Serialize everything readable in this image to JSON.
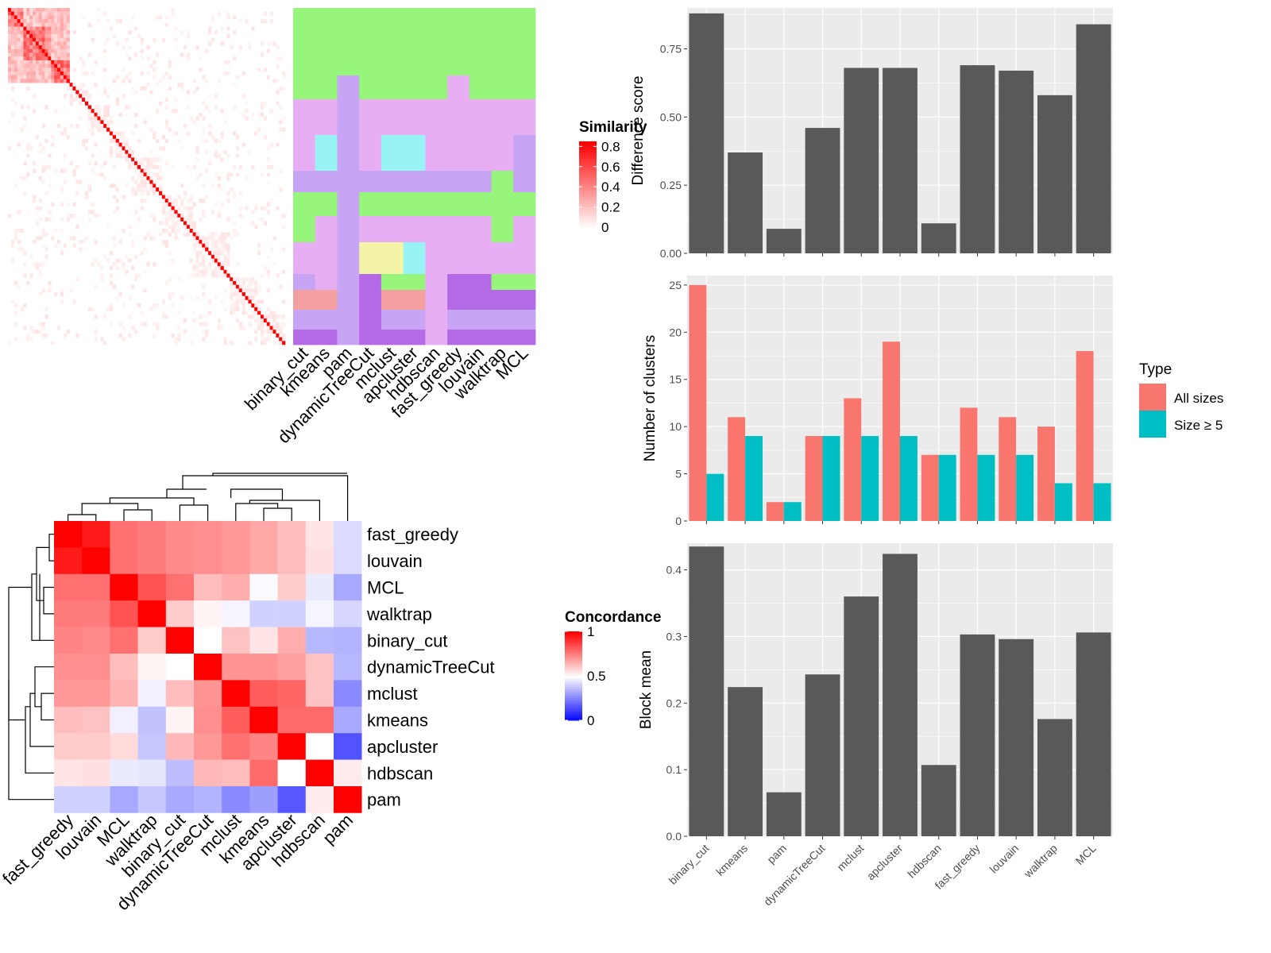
{
  "methods": [
    "binary_cut",
    "kmeans",
    "pam",
    "dynamicTreeCut",
    "mclust",
    "apcluster",
    "hdbscan",
    "fast_greedy",
    "louvain",
    "walktrap",
    "MCL"
  ],
  "similarity_legend": {
    "title": "Similarity",
    "ticks": [
      "0",
      "0.2",
      "0.4",
      "0.6",
      "0.8"
    ]
  },
  "concordance_legend": {
    "title": "Concordance",
    "ticks": [
      "0",
      "0.5",
      "1"
    ]
  },
  "type_legend": {
    "title": "Type",
    "items": [
      {
        "label": "All sizes",
        "color": "#F8766D"
      },
      {
        "label": "Size ≥ 5",
        "color": "#00BFC4"
      }
    ]
  },
  "colors": {
    "bar": "#595959",
    "panel": "#EBEBEB",
    "all_sizes": "#F8766D",
    "size5": "#00BFC4"
  },
  "chart_data": [
    {
      "type": "bar",
      "ylabel": "Difference score",
      "categories": [
        "binary_cut",
        "kmeans",
        "pam",
        "dynamicTreeCut",
        "mclust",
        "apcluster",
        "hdbscan",
        "fast_greedy",
        "louvain",
        "walktrap",
        "MCL"
      ],
      "values": [
        0.88,
        0.37,
        0.09,
        0.46,
        0.68,
        0.68,
        0.11,
        0.69,
        0.67,
        0.58,
        0.84
      ],
      "ylim": [
        0,
        0.9
      ],
      "yticks": [
        "0.00",
        "0.25",
        "0.50",
        "0.75"
      ]
    },
    {
      "type": "bar",
      "ylabel": "Number of clusters",
      "categories": [
        "binary_cut",
        "kmeans",
        "pam",
        "dynamicTreeCut",
        "mclust",
        "apcluster",
        "hdbscan",
        "fast_greedy",
        "louvain",
        "walktrap",
        "MCL"
      ],
      "series": [
        {
          "name": "All sizes",
          "values": [
            25,
            11,
            2,
            9,
            13,
            19,
            7,
            12,
            11,
            10,
            18
          ]
        },
        {
          "name": "Size ≥ 5",
          "values": [
            5,
            9,
            2,
            9,
            9,
            9,
            7,
            7,
            7,
            4,
            4
          ]
        }
      ],
      "ylim": [
        0,
        26
      ],
      "yticks": [
        "0",
        "5",
        "10",
        "15",
        "20",
        "25"
      ]
    },
    {
      "type": "bar",
      "ylabel": "Block mean",
      "categories": [
        "binary_cut",
        "kmeans",
        "pam",
        "dynamicTreeCut",
        "mclust",
        "apcluster",
        "hdbscan",
        "fast_greedy",
        "louvain",
        "walktrap",
        "MCL"
      ],
      "values": [
        0.435,
        0.224,
        0.066,
        0.243,
        0.36,
        0.424,
        0.107,
        0.303,
        0.296,
        0.176,
        0.306
      ],
      "ylim": [
        0,
        0.44
      ],
      "yticks": [
        "0.0",
        "0.1",
        "0.2",
        "0.3",
        "0.4"
      ]
    },
    {
      "type": "heatmap",
      "name": "concordance",
      "rows": [
        "fast_greedy",
        "louvain",
        "MCL",
        "walktrap",
        "binary_cut",
        "dynamicTreeCut",
        "mclust",
        "kmeans",
        "apcluster",
        "hdbscan",
        "pam"
      ],
      "values": [
        [
          1,
          0.95,
          0.78,
          0.76,
          0.73,
          0.72,
          0.7,
          0.67,
          0.63,
          0.55,
          0.43
        ],
        [
          0.95,
          1,
          0.78,
          0.76,
          0.73,
          0.72,
          0.7,
          0.67,
          0.63,
          0.56,
          0.43
        ],
        [
          0.78,
          0.78,
          1,
          0.84,
          0.78,
          0.63,
          0.66,
          0.49,
          0.6,
          0.46,
          0.33
        ],
        [
          0.76,
          0.76,
          0.84,
          1,
          0.6,
          0.52,
          0.48,
          0.41,
          0.41,
          0.48,
          0.42
        ],
        [
          0.74,
          0.73,
          0.78,
          0.6,
          1,
          0.5,
          0.62,
          0.55,
          0.66,
          0.36,
          0.35
        ],
        [
          0.72,
          0.72,
          0.63,
          0.52,
          0.5,
          1,
          0.71,
          0.71,
          0.69,
          0.62,
          0.36
        ],
        [
          0.7,
          0.7,
          0.65,
          0.47,
          0.63,
          0.71,
          1,
          0.82,
          0.8,
          0.62,
          0.27
        ],
        [
          0.63,
          0.62,
          0.47,
          0.38,
          0.52,
          0.72,
          0.82,
          1,
          0.79,
          0.79,
          0.33
        ],
        [
          0.6,
          0.6,
          0.57,
          0.39,
          0.64,
          0.7,
          0.78,
          0.74,
          1,
          0.5,
          0.16
        ],
        [
          0.55,
          0.56,
          0.46,
          0.45,
          0.37,
          0.64,
          0.63,
          0.79,
          0.5,
          1,
          0.54
        ],
        [
          0.41,
          0.41,
          0.33,
          0.39,
          0.33,
          0.35,
          0.27,
          0.31,
          0.17,
          0.54,
          1
        ]
      ]
    }
  ]
}
